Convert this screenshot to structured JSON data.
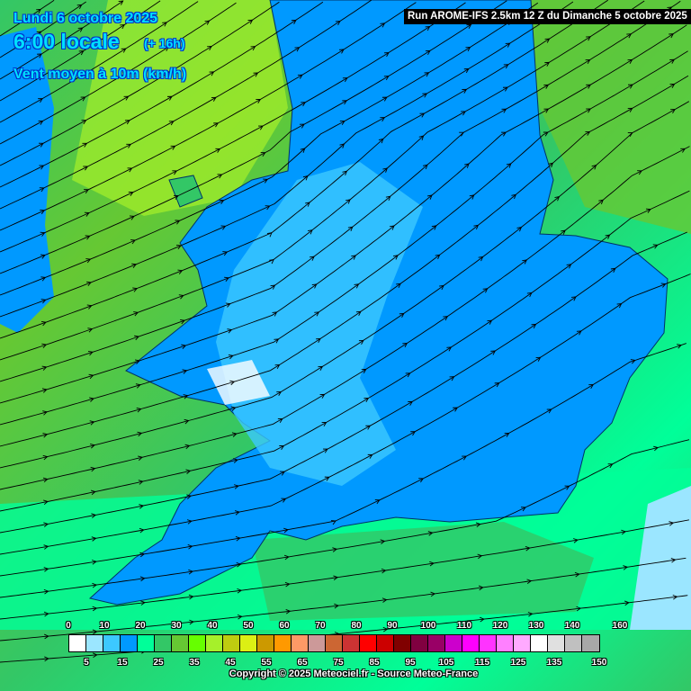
{
  "header": {
    "date": "Lundi 6 octobre 2025",
    "time": "6:00 locale",
    "lead": "(+ 16h)",
    "parameter": "Vent moyen à 10m (km/h)",
    "run": "Run AROME-IFS 2.5km 12 Z du Dimanche 5 octobre 2025"
  },
  "legend": {
    "colors": [
      "#ffffff",
      "#9be6ff",
      "#3cc8ff",
      "#0099ff",
      "#00ff99",
      "#33c766",
      "#66c833",
      "#66ff00",
      "#a6f02a",
      "#bfcc10",
      "#dcef14",
      "#cc9900",
      "#ff9900",
      "#ff9966",
      "#cc9999",
      "#cc6633",
      "#cc3333",
      "#ff0000",
      "#cc0000",
      "#800000",
      "#800040",
      "#990066",
      "#cc00cc",
      "#ff00ff",
      "#ff33ff",
      "#ff80ff",
      "#ffaaff",
      "#ffffff",
      "#e0e0e0",
      "#c0c0c0",
      "#a8a8a8"
    ],
    "top_labels": [
      "0",
      "10",
      "20",
      "30",
      "40",
      "50",
      "60",
      "70",
      "80",
      "90",
      "100",
      "110",
      "120",
      "130",
      "140",
      "160"
    ],
    "bottom_labels": [
      "5",
      "15",
      "25",
      "35",
      "45",
      "55",
      "65",
      "75",
      "85",
      "95",
      "105",
      "115",
      "125",
      "135",
      "150"
    ]
  },
  "copyright": "Copyright © 2025 Meteociel.fr - Source Meteo-France"
}
